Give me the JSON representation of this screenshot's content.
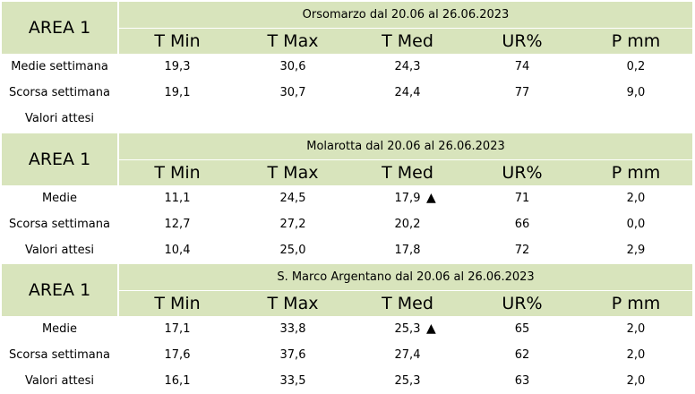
{
  "columns": [
    "T Min",
    "T Max",
    "T Med",
    "UR%",
    "P mm"
  ],
  "sections": [
    {
      "area": "AREA 1",
      "title": "Orsomarzo dal 20.06 al 26.06.2023",
      "rows": [
        {
          "label": "Medie settimana",
          "values": [
            "19,3",
            "30,6",
            "24,3",
            "74",
            "0,2"
          ]
        },
        {
          "label": "Scorsa settimana",
          "values": [
            "19,1",
            "30,7",
            "24,4",
            "77",
            "9,0"
          ]
        },
        {
          "label": "Valori attesi",
          "values": [
            "",
            "",
            "",
            "",
            ""
          ]
        }
      ]
    },
    {
      "area": "AREA 1",
      "title": "Molarotta dal 20.06 al 26.06.2023",
      "rows": [
        {
          "label": "Medie",
          "values": [
            "11,1",
            "24,5",
            "17,9",
            "71",
            "2,0"
          ],
          "arrow": "▲"
        },
        {
          "label": "Scorsa settimana",
          "values": [
            "12,7",
            "27,2",
            "20,2",
            "66",
            "0,0"
          ]
        },
        {
          "label": "Valori attesi",
          "values": [
            "10,4",
            "25,0",
            "17,8",
            "72",
            "2,9"
          ]
        }
      ]
    },
    {
      "area": "AREA 1",
      "title": "S. Marco Argentano dal 20.06 al 26.06.2023",
      "rows": [
        {
          "label": "Medie",
          "values": [
            "17,1",
            "33,8",
            "25,3",
            "65",
            "2,0"
          ],
          "arrow": "▲"
        },
        {
          "label": "Scorsa settimana",
          "values": [
            "17,6",
            "37,6",
            "27,4",
            "62",
            "2,0"
          ]
        },
        {
          "label": "Valori attesi",
          "values": [
            "16,1",
            "33,5",
            "25,3",
            "63",
            "2,0"
          ]
        }
      ]
    }
  ]
}
